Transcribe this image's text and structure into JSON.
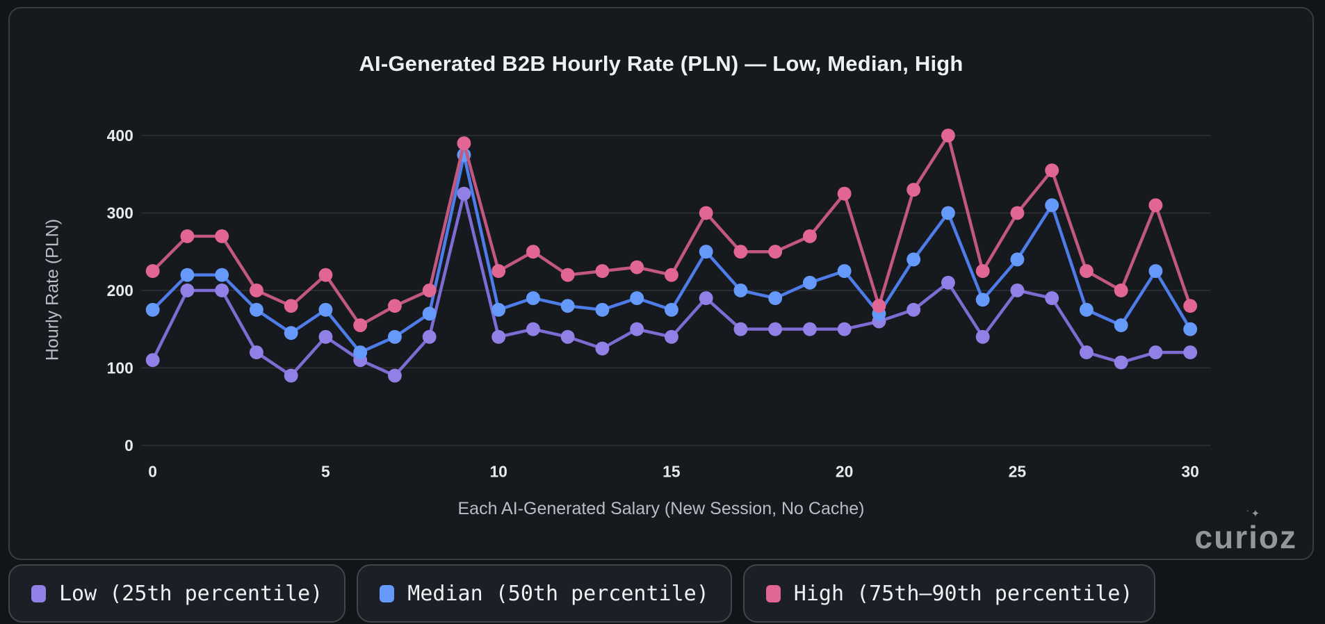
{
  "watermark": {
    "text": "curioz",
    "sparkle_icon": "✦"
  },
  "chart_data": {
    "type": "line",
    "title": "AI-Generated B2B Hourly Rate (PLN) — Low, Median, High",
    "xlabel": "Each AI-Generated Salary (New Session, No Cache)",
    "ylabel": "Hourly Rate (PLN)",
    "x": [
      0,
      1,
      2,
      3,
      4,
      5,
      6,
      7,
      8,
      9,
      10,
      11,
      12,
      13,
      14,
      15,
      16,
      17,
      18,
      19,
      20,
      21,
      22,
      23,
      24,
      25,
      26,
      27,
      28,
      29,
      30
    ],
    "xticks": [
      0,
      5,
      10,
      15,
      20,
      25,
      30
    ],
    "yticks": [
      0,
      100,
      200,
      300,
      400
    ],
    "ylim": [
      0,
      420
    ],
    "grid": "horizontal-only",
    "legend_position": "bottom-outside",
    "series": [
      {
        "name": "Low (25th percentile)",
        "color": "#9181E6",
        "line_color": "#7D6CD2",
        "values": [
          110,
          200,
          200,
          120,
          90,
          140,
          110,
          90,
          140,
          325,
          140,
          150,
          140,
          125,
          150,
          140,
          190,
          150,
          150,
          150,
          150,
          160,
          175,
          210,
          140,
          200,
          190,
          120,
          107,
          120,
          120
        ]
      },
      {
        "name": "Median (50th percentile)",
        "color": "#659AFA",
        "line_color": "#4E7CE8",
        "values": [
          175,
          220,
          220,
          175,
          145,
          175,
          120,
          140,
          170,
          375,
          175,
          190,
          180,
          175,
          190,
          175,
          250,
          200,
          190,
          210,
          225,
          170,
          240,
          300,
          188,
          240,
          310,
          175,
          155,
          225,
          150
        ]
      },
      {
        "name": "High (75th–90th percentile)",
        "color": "#E26694",
        "line_color": "#C25880",
        "values": [
          225,
          270,
          270,
          200,
          180,
          220,
          155,
          180,
          200,
          390,
          225,
          250,
          220,
          225,
          230,
          220,
          300,
          250,
          250,
          270,
          325,
          180,
          330,
          400,
          225,
          300,
          355,
          225,
          200,
          310,
          180
        ]
      }
    ]
  }
}
